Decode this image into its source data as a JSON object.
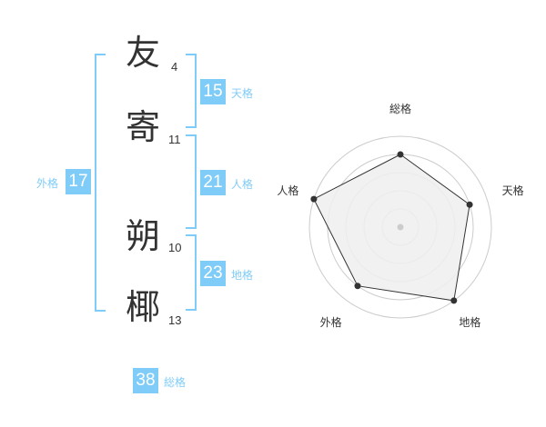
{
  "name": [
    {
      "char": "友",
      "strokes": "4"
    },
    {
      "char": "寄",
      "strokes": "11"
    },
    {
      "char": "朔",
      "strokes": "10"
    },
    {
      "char": "椰",
      "strokes": "13"
    }
  ],
  "kaku": {
    "tenkaku": {
      "label": "天格",
      "value": "15"
    },
    "jinkaku": {
      "label": "人格",
      "value": "21"
    },
    "chikaku": {
      "label": "地格",
      "value": "23"
    },
    "gaikaku": {
      "label": "外格",
      "value": "17"
    },
    "soukaku": {
      "label": "総格",
      "value": "38"
    }
  },
  "chart_data": {
    "type": "radar",
    "axes": [
      "総格",
      "天格",
      "地格",
      "外格",
      "人格"
    ],
    "values": [
      4,
      4,
      5,
      4,
      5
    ],
    "range": [
      0,
      5
    ],
    "rings": 5,
    "colors": {
      "fill": "#efefef",
      "line": "#333333",
      "grid": "#cccccc"
    }
  }
}
